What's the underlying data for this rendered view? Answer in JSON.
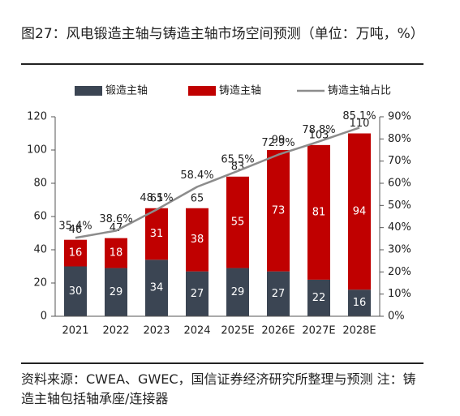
{
  "header": {
    "title": "图27：风电锻造主轴与铸造主轴市场空间预测（单位：万吨，%）"
  },
  "footer": {
    "source": "资料来源：CWEA、GWEC，国信证券经济研究所整理与预测 注：铸造主轴包括轴承座/连接器"
  },
  "colors": {
    "forged": "#3b4553",
    "cast": "#c00000",
    "share_line": "#8c8c8c"
  },
  "chart_data": {
    "type": "bar",
    "stacked": true,
    "categories": [
      "2021",
      "2022",
      "2023",
      "2024",
      "2025E",
      "2026E",
      "2027E",
      "2028E"
    ],
    "series": [
      {
        "name": "锻造主轴",
        "values": [
          30,
          29,
          34,
          27,
          29,
          27,
          22,
          16
        ]
      },
      {
        "name": "铸造主轴",
        "values": [
          16,
          18,
          31,
          38,
          55,
          73,
          81,
          94
        ]
      }
    ],
    "totals": [
      46,
      47,
      65,
      65,
      83,
      99,
      103,
      110
    ],
    "line_series": {
      "name": "铸造主轴占比",
      "axis": "right",
      "values": [
        35.4,
        38.6,
        48.1,
        58.4,
        65.5,
        72.9,
        78.8,
        85.1
      ],
      "labels": [
        "35.4%",
        "38.6%",
        "48.1%",
        "58.4%",
        "65.5%",
        "72.9%",
        "78.8%",
        "85.1%"
      ]
    },
    "y_left": {
      "min": 0,
      "max": 120,
      "ticks": [
        "0",
        "20",
        "40",
        "60",
        "80",
        "100",
        "120"
      ]
    },
    "y_right": {
      "min": 0,
      "max": 90,
      "ticks": [
        "0%",
        "10%",
        "20%",
        "30%",
        "40%",
        "50%",
        "60%",
        "70%",
        "80%",
        "90%"
      ]
    },
    "legend": {
      "position": "top"
    },
    "grid": false
  }
}
